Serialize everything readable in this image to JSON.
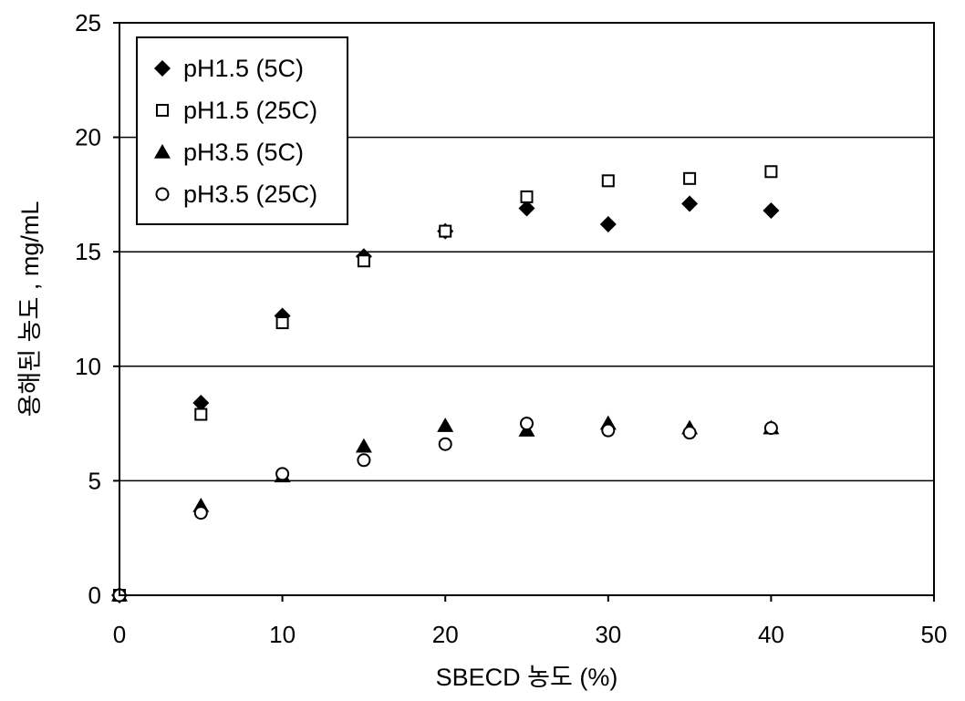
{
  "chart_data": {
    "type": "scatter",
    "title": "",
    "xlabel": "SBECD  농도  (%)",
    "ylabel": "용해된  농도  ,  mg/mL",
    "xlim": [
      0,
      50
    ],
    "ylim": [
      0,
      25
    ],
    "xticks": [
      0,
      10,
      20,
      30,
      40,
      50
    ],
    "yticks": [
      0,
      5,
      10,
      15,
      20,
      25
    ],
    "grid": "horizontal",
    "legend_position": "top-left",
    "series": [
      {
        "name": "pH1.5 (5C)",
        "marker": "filled-diamond",
        "x": [
          0,
          5,
          10,
          15,
          20,
          25,
          30,
          35,
          40
        ],
        "y": [
          0,
          8.4,
          12.2,
          14.8,
          15.9,
          16.9,
          16.2,
          17.1,
          16.8
        ]
      },
      {
        "name": "pH1.5 (25C)",
        "marker": "open-square",
        "x": [
          0,
          5,
          10,
          15,
          20,
          25,
          30,
          35,
          40
        ],
        "y": [
          0,
          7.9,
          11.9,
          14.6,
          15.9,
          17.4,
          18.1,
          18.2,
          18.5
        ]
      },
      {
        "name": "pH3.5 (5C)",
        "marker": "filled-triangle",
        "x": [
          0,
          5,
          10,
          15,
          20,
          25,
          30,
          35,
          40
        ],
        "y": [
          0,
          3.9,
          5.2,
          6.5,
          7.4,
          7.2,
          7.5,
          7.3,
          7.3
        ]
      },
      {
        "name": "pH3.5 (25C)",
        "marker": "open-circle",
        "x": [
          0,
          5,
          10,
          15,
          20,
          25,
          30,
          35,
          40
        ],
        "y": [
          0,
          3.6,
          5.3,
          5.9,
          6.6,
          7.5,
          7.2,
          7.1,
          7.3
        ]
      }
    ]
  }
}
